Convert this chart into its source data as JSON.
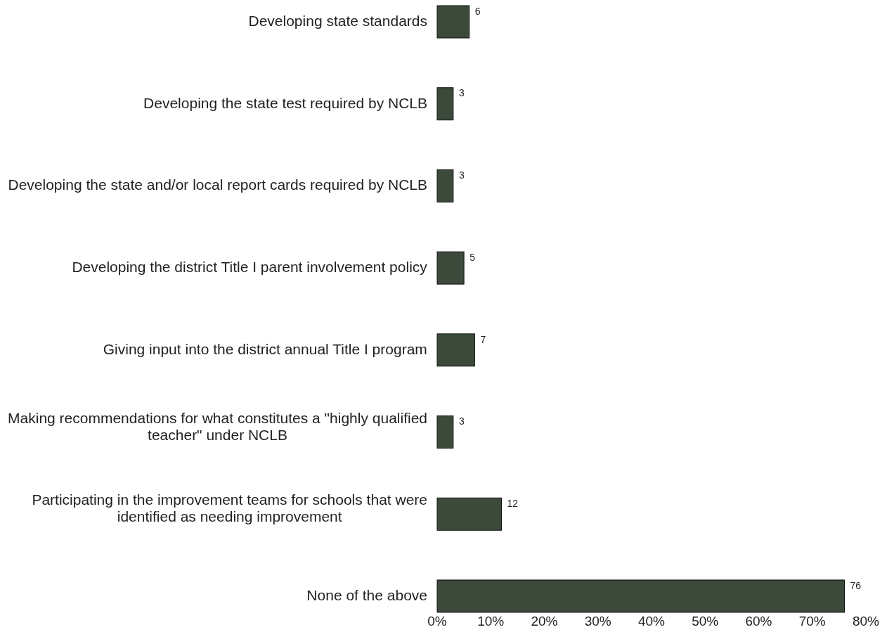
{
  "chart_data": {
    "type": "bar",
    "orientation": "horizontal",
    "categories": [
      "Developing state standards",
      "Developing the state test required by NCLB",
      "Developing the state and/or local report cards required by NCLB",
      "Developing the district Title I parent involvement policy",
      "Giving input into the district annual Title I program",
      "Making recommendations for what constitutes a \"highly qualified teacher\" under NCLB",
      "Participating in the improvement teams for schools that were identified as needing improvement",
      "None of the above"
    ],
    "values": [
      6,
      3,
      3,
      5,
      7,
      3,
      12,
      76
    ],
    "color": "#3b4a3b",
    "xlim": [
      0,
      80
    ],
    "xticks": [
      {
        "value": 0,
        "label": "0%"
      },
      {
        "value": 10,
        "label": "10%"
      },
      {
        "value": 20,
        "label": "20%"
      },
      {
        "value": 30,
        "label": "30%"
      },
      {
        "value": 40,
        "label": "40%"
      },
      {
        "value": 50,
        "label": "50%"
      },
      {
        "value": 60,
        "label": "60%"
      },
      {
        "value": 70,
        "label": "70%"
      },
      {
        "value": 80,
        "label": "80%"
      }
    ],
    "data_labels": true,
    "grid": false
  }
}
